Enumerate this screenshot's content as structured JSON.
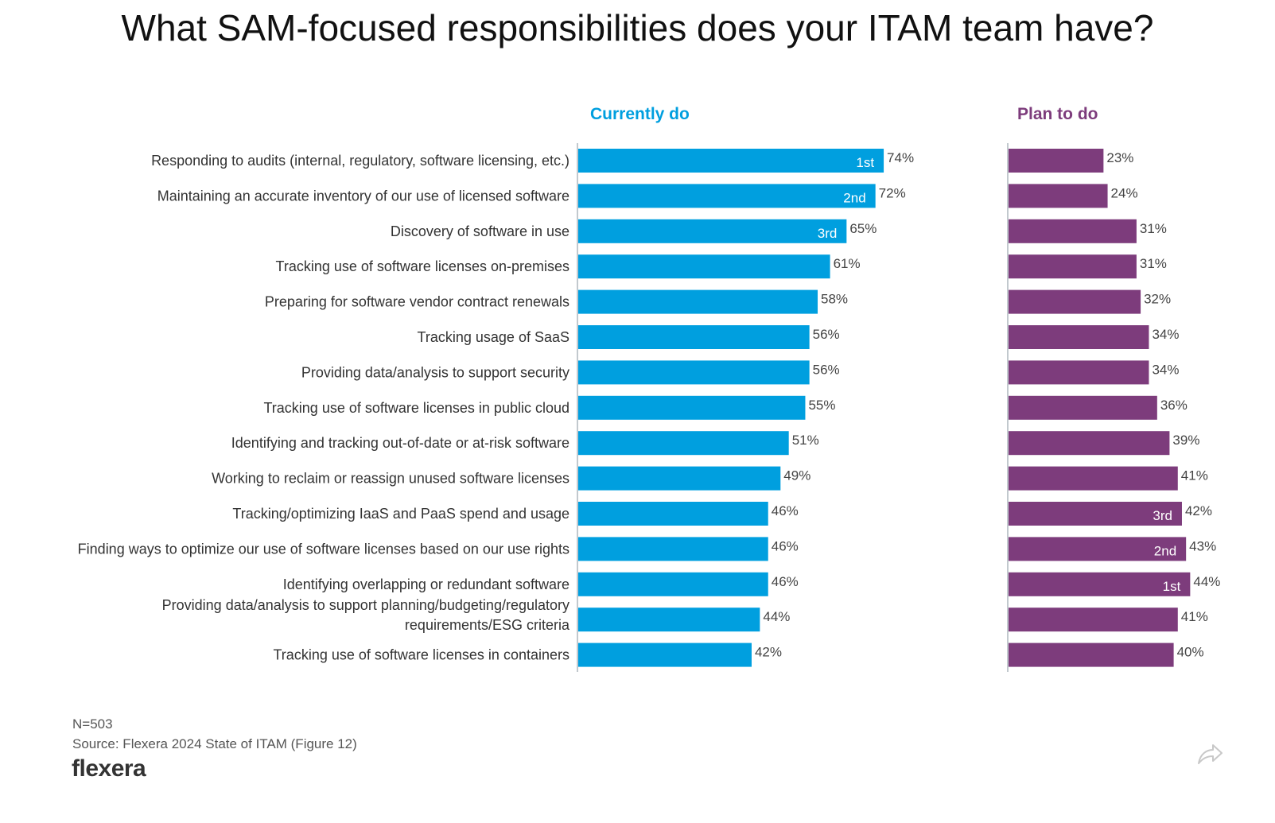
{
  "title": "What SAM-focused responsibilities does your ITAM team have?",
  "footer": {
    "n": "N=503",
    "source": "Source: Flexera 2024 State of ITAM (Figure 12)",
    "logo": "flexera",
    "share_icon": "share-arrow-icon"
  },
  "colors": {
    "current": "#009fdf",
    "plan": "#7d3c7c"
  },
  "chart_data": {
    "type": "bar",
    "orientation": "horizontal",
    "title": "What SAM-focused responsibilities does your ITAM team have?",
    "xlabel": "",
    "ylabel": "",
    "xlim": [
      0,
      100
    ],
    "grid": false,
    "categories": [
      "Responding to audits (internal, regulatory, software licensing, etc.)",
      "Maintaining an accurate inventory of our use of licensed software",
      "Discovery of software in use",
      "Tracking use of software licenses on-premises",
      "Preparing for software vendor contract renewals",
      "Tracking usage of SaaS",
      "Providing data/analysis to support security",
      "Tracking use of software licenses in public cloud",
      "Identifying and tracking out-of-date or at-risk software",
      "Working to reclaim or reassign unused software licenses",
      "Tracking/optimizing IaaS and PaaS spend and usage",
      "Finding ways to optimize our use of software licenses based on our use rights",
      "Identifying overlapping or redundant software",
      "Providing data/analysis to support planning/budgeting/regulatory requirements/ESG criteria",
      "Tracking use of software licenses in containers"
    ],
    "category_lines": [
      [
        "Responding to audits (internal, regulatory, software licensing, etc.)"
      ],
      [
        "Maintaining an accurate inventory of our use of licensed software"
      ],
      [
        "Discovery of software in use"
      ],
      [
        "Tracking use of software licenses on-premises"
      ],
      [
        "Preparing for software vendor contract renewals"
      ],
      [
        "Tracking usage of SaaS"
      ],
      [
        "Providing data/analysis to support security"
      ],
      [
        "Tracking use of software licenses in public cloud"
      ],
      [
        "Identifying and tracking out-of-date or at-risk software"
      ],
      [
        "Working to reclaim or reassign unused software licenses"
      ],
      [
        "Tracking/optimizing IaaS and PaaS spend and usage"
      ],
      [
        "Finding ways to optimize our use of software licenses based on our use rights"
      ],
      [
        "Identifying overlapping or redundant software"
      ],
      [
        "Providing data/analysis to support planning/budgeting/regulatory",
        "requirements/ESG criteria"
      ],
      [
        "Tracking use of software licenses in containers"
      ]
    ],
    "series": [
      {
        "name": "Currently do",
        "color": "#009fdf",
        "values": [
          74,
          72,
          65,
          61,
          58,
          56,
          56,
          55,
          51,
          49,
          46,
          46,
          46,
          44,
          42
        ],
        "ranks": [
          "1st",
          "2nd",
          "3rd",
          "",
          "",
          "",
          "",
          "",
          "",
          "",
          "",
          "",
          "",
          "",
          ""
        ]
      },
      {
        "name": "Plan to do",
        "color": "#7d3c7c",
        "values": [
          23,
          24,
          31,
          31,
          32,
          34,
          34,
          36,
          39,
          41,
          42,
          43,
          44,
          41,
          40
        ],
        "ranks": [
          "",
          "",
          "",
          "",
          "",
          "",
          "",
          "",
          "",
          "",
          "3rd",
          "2nd",
          "1st",
          "",
          ""
        ]
      }
    ],
    "value_suffix": "%",
    "legend": "column-headers-top"
  }
}
